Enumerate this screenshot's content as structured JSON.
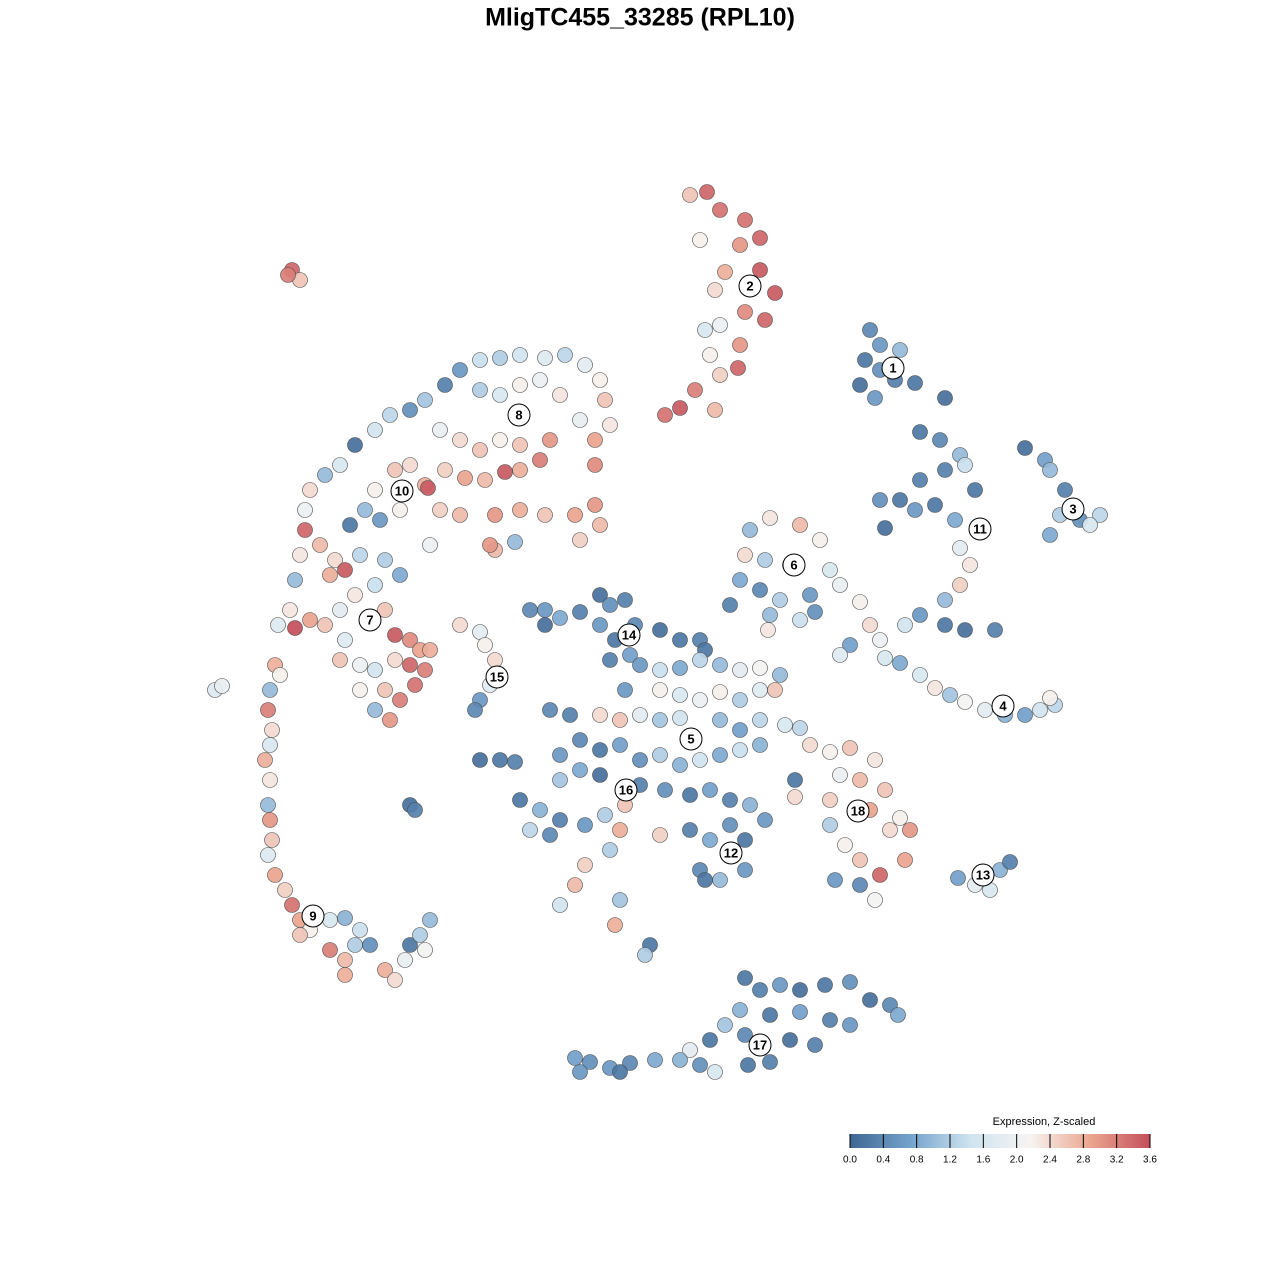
{
  "chart_data": {
    "type": "scatter",
    "title": "MligTC455_33285 (RPL10)",
    "xlim": [
      0,
      920
    ],
    "ylim": [
      0,
      920
    ],
    "x": [
      490,
      507,
      520,
      545,
      560,
      540,
      525,
      560,
      575,
      515,
      545,
      565,
      520,
      540,
      510,
      538,
      520,
      495,
      515,
      465,
      480,
      505,
      500,
      670,
      680,
      700,
      665,
      680,
      695,
      660,
      675,
      715,
      745,
      720,
      740,
      760,
      745,
      765,
      720,
      700,
      680,
      715,
      735,
      755,
      775,
      685,
      760,
      770,
      760,
      745,
      720,
      745,
      765,
      795,
      705,
      825,
      845,
      850,
      865,
      860,
      880,
      900,
      850,
      890,
      570,
      550,
      600,
      620,
      545,
      565,
      590,
      630,
      540,
      560,
      580,
      610,
      640,
      530,
      570,
      600,
      568,
      615,
      660,
      670,
      680,
      685,
      700,
      650,
      640,
      720,
      735,
      750,
      765,
      785,
      805,
      825,
      840,
      855,
      850,
      610,
      630,
      650,
      675,
      640,
      660,
      685,
      630,
      670,
      700,
      630,
      690,
      710,
      645,
      660,
      705,
      635,
      660,
      680,
      675,
      595,
      595,
      758,
      775,
      790,
      800,
      810,
      545,
      560,
      580,
      600,
      625,
      650,
      670,
      690,
      698,
      540,
      570,
      600,
      630,
      650,
      525,
      545,
      590,
      615,
      510,
      490,
      480,
      500,
      515,
      548,
      570,
      455,
      430,
      410,
      390,
      375,
      380,
      420,
      75,
      70,
      80,
      68,
      72,
      70,
      65,
      70,
      68,
      70,
      72,
      68,
      75,
      85,
      92,
      100,
      110,
      100,
      130,
      145,
      130,
      145,
      160,
      170,
      185,
      195,
      205,
      210,
      220,
      230,
      225,
      145,
      155,
      15,
      22,
      260,
      280,
      300,
      320,
      345,
      365,
      385,
      400,
      405,
      410,
      395,
      380,
      360,
      340,
      320,
      300,
      280,
      245,
      225,
      210,
      190,
      175,
      155,
      140,
      125,
      110,
      105,
      105,
      100,
      95,
      90,
      95,
      78,
      240,
      260,
      280,
      300,
      320,
      350,
      340,
      320,
      305,
      285,
      265,
      245,
      225,
      228,
      210,
      195,
      175,
      165,
      150,
      180,
      200,
      240,
      260,
      295,
      320,
      345,
      375,
      395,
      400,
      380,
      395,
      230,
      295,
      315,
      120,
      135,
      145,
      130,
      160,
      185,
      200,
      175,
      155,
      140,
      125,
      110,
      145,
      160,
      185,
      195,
      210,
      220,
      225,
      210,
      195,
      175,
      185,
      200,
      190,
      175,
      160,
      140,
      230,
      215,
      92,
      100,
      88,
      290,
      260,
      280,
      285,
      295,
      290,
      280,
      275,
      330,
      345,
      360,
      380,
      400,
      410,
      425,
      400,
      415,
      435,
      460,
      480,
      500,
      505,
      410,
      430,
      345,
      440,
      460,
      480,
      500,
      520,
      540,
      560,
      580,
      460,
      480,
      500,
      520,
      540,
      560,
      575,
      425,
      400,
      420,
      440,
      460,
      480,
      520,
      540,
      560,
      585,
      600,
      350,
      370,
      380,
      360,
      400,
      420,
      440,
      460,
      480,
      500,
      520,
      540,
      560,
      400,
      380,
      360,
      440,
      465,
      490,
      510,
      530,
      550,
      565,
      320,
      340,
      360,
      385,
      405,
      425,
      330,
      350,
      460,
      490,
      510,
      530,
      545,
      500,
      520,
      545,
      505,
      280,
      300,
      315,
      420,
      410,
      385,
      375,
      360,
      420,
      415,
      450,
      445,
      210,
      215
    ],
    "y": [
      900,
      903,
      885,
      875,
      857,
      850,
      823,
      825,
      802,
      805,
      783,
      775,
      770,
      750,
      740,
      727,
      720,
      705,
      685,
      680,
      687,
      765,
      855,
      765,
      750,
      745,
      735,
      725,
      715,
      710,
      697,
      712,
      697,
      663,
      655,
      640,
      625,
      630,
      615,
      595,
      595,
      585,
      590,
      575,
      605,
      567,
      547,
      530,
      510,
      495,
      480,
      470,
      465,
      465,
      470,
      647,
      635,
      625,
      605,
      580,
      575,
      580,
      560,
      570,
      577,
      565,
      570,
      555,
      540,
      535,
      530,
      525,
      515,
      505,
      495,
      500,
      510,
      490,
      480,
      475,
      465,
      483,
      493,
      470,
      455,
      437,
      432,
      450,
      440,
      420,
      407,
      400,
      393,
      385,
      380,
      380,
      385,
      390,
      397,
      350,
      343,
      347,
      335,
      320,
      315,
      305,
      295,
      285,
      277,
      270,
      265,
      265,
      250,
      235,
      235,
      215,
      210,
      220,
      195,
      298,
      315,
      217,
      210,
      205,
      225,
      233,
      117,
      105,
      110,
      105,
      110,
      113,
      95,
      90,
      80,
      85,
      80,
      83,
      75,
      70,
      70,
      60,
      55,
      50,
      55,
      45,
      35,
      30,
      23,
      30,
      33,
      35,
      32,
      27,
      33,
      37,
      23,
      23,
      430,
      405,
      420,
      385,
      365,
      350,
      335,
      315,
      290,
      275,
      255,
      240,
      220,
      205,
      190,
      175,
      165,
      160,
      145,
      135,
      175,
      177,
      165,
      150,
      125,
      115,
      135,
      150,
      160,
      175,
      145,
      120,
      150,
      405,
      409,
      725,
      735,
      737,
      740,
      737,
      740,
      730,
      715,
      695,
      670,
      655,
      675,
      700,
      715,
      710,
      700,
      705,
      710,
      695,
      685,
      680,
      665,
      650,
      630,
      620,
      605,
      585,
      565,
      540,
      515,
      485,
      467,
      470,
      665,
      655,
      645,
      655,
      650,
      655,
      635,
      625,
      623,
      615,
      617,
      625,
      610,
      607,
      630,
      625,
      605,
      585,
      570,
      575,
      585,
      585,
      580,
      580,
      585,
      580,
      580,
      590,
      570,
      555,
      630,
      550,
      545,
      553,
      550,
      535,
      525,
      520,
      540,
      535,
      520,
      510,
      500,
      485,
      470,
      475,
      455,
      430,
      485,
      460,
      455,
      445,
      425,
      430,
      435,
      425,
      405,
      395,
      375,
      385,
      405,
      435,
      445,
      410,
      825,
      815,
      820,
      550,
      470,
      463,
      450,
      435,
      410,
      395,
      385,
      485,
      485,
      477,
      483,
      500,
      490,
      495,
      470,
      455,
      470,
      465,
      455,
      455,
      445,
      435,
      440,
      470,
      430,
      425,
      427,
      435,
      430,
      425,
      427,
      420,
      405,
      400,
      395,
      403,
      395,
      405,
      405,
      405,
      380,
      375,
      380,
      375,
      377,
      375,
      365,
      375,
      370,
      367,
      385,
      380,
      355,
      340,
      345,
      350,
      335,
      340,
      330,
      335,
      340,
      345,
      350,
      320,
      325,
      315,
      310,
      305,
      300,
      305,
      295,
      290,
      275,
      295,
      285,
      275,
      270,
      280,
      290,
      265,
      260,
      260,
      265,
      255,
      270,
      255,
      225,
      215,
      225,
      215,
      335,
      335,
      333,
      265,
      245,
      230,
      210,
      190,
      195,
      170,
      150,
      140,
      290,
      285
    ],
    "values": [
      2.6,
      3.4,
      3.3,
      3.3,
      3.4,
      3.0,
      2.8,
      3.5,
      3.5,
      2.4,
      3.1,
      3.4,
      2.0,
      3.0,
      2.2,
      3.4,
      2.5,
      3.2,
      2.7,
      3.3,
      3.5,
      1.6,
      2.2,
      0.4,
      0.6,
      1.0,
      0.2,
      0.5,
      0.3,
      0.1,
      0.6,
      0.2,
      0.1,
      0.2,
      0.4,
      1.0,
      0.3,
      1.4,
      0.3,
      0.2,
      0.5,
      0.6,
      0.2,
      0.8,
      0.2,
      0.1,
      1.8,
      2.3,
      2.5,
      1.0,
      0.6,
      0.2,
      0.1,
      0.3,
      1.5,
      0.1,
      0.7,
      1.0,
      0.3,
      1.2,
      0.5,
      1.3,
      0.8,
      1.6,
      2.3,
      1.0,
      2.7,
      2.2,
      2.4,
      1.2,
      2.0,
      1.6,
      0.8,
      0.4,
      1.2,
      0.6,
      1.9,
      0.3,
      1.0,
      1.4,
      2.3,
      0.5,
      2.2,
      2.4,
      2.0,
      1.6,
      0.8,
      0.7,
      1.7,
      1.6,
      2.3,
      1.1,
      2.1,
      1.8,
      0.9,
      0.7,
      1.5,
      1.3,
      2.2,
      2.4,
      2.2,
      2.6,
      2.3,
      2.0,
      2.7,
      2.6,
      2.5,
      2.9,
      2.2,
      1.2,
      2.4,
      3.0,
      2.2,
      2.6,
      2.9,
      0.6,
      0.4,
      3.4,
      2.1,
      2.4,
      0.2,
      0.7,
      1.8,
      1.6,
      0.9,
      0.3,
      0.2,
      0.3,
      0.6,
      0.1,
      0.2,
      0.5,
      0.1,
      0.4,
      0.8,
      0.9,
      0.2,
      0.7,
      0.3,
      0.6,
      1.1,
      0.4,
      0.1,
      0.3,
      0.2,
      1.8,
      0.9,
      0.5,
      1.6,
      0.2,
      0.3,
      0.8,
      0.4,
      0.6,
      0.5,
      0.7,
      0.6,
      0.2,
      2.8,
      1.0,
      2.2,
      3.2,
      2.4,
      1.6,
      2.8,
      2.3,
      1.0,
      3.0,
      2.6,
      1.7,
      2.9,
      2.5,
      3.3,
      2.9,
      2.2,
      2.6,
      3.2,
      2.7,
      1.6,
      0.9,
      1.4,
      0.5,
      2.8,
      2.4,
      1.9,
      0.2,
      1.2,
      1.0,
      2.1,
      2.8,
      1.2,
      1.7,
      1.9,
      0.6,
      1.4,
      1.2,
      1.5,
      1.7,
      1.3,
      1.8,
      2.2,
      2.6,
      2.3,
      2.9,
      1.9,
      2.3,
      2.0,
      2.2,
      1.6,
      1.2,
      0.3,
      1.1,
      0.5,
      1.3,
      1.5,
      0.1,
      1.6,
      1.0,
      2.4,
      2.0,
      3.4,
      2.3,
      1.0,
      2.3,
      3.6,
      1.7,
      1.9,
      2.4,
      2.6,
      2.2,
      2.6,
      3.0,
      3.2,
      2.8,
      3.5,
      2.7,
      2.9,
      2.5,
      2.8,
      3.5,
      2.4,
      2.6,
      2.2,
      1.0,
      0.2,
      0.6,
      2.2,
      2.5,
      2.7,
      3.0,
      2.8,
      2.6,
      2.9,
      3.0,
      2.7,
      2.5,
      3.1,
      2.0,
      2.7,
      1.0,
      2.7,
      2.4,
      3.5,
      2.8,
      1.3,
      1.2,
      0.8,
      1.4,
      2.3,
      1.8,
      2.6,
      2.9,
      1.7,
      2.0,
      2.6,
      3.5,
      3.1,
      2.9,
      3.2,
      3.4,
      2.4,
      1.5,
      2.6,
      3.2,
      3.0,
      1.0,
      2.2,
      2.6,
      2.8,
      3.3,
      3.4,
      2.6,
      3.2,
      3.0,
      2.4,
      1.8,
      2.2,
      2.4,
      1.8,
      0.6,
      0.4,
      0.4,
      0.6,
      0.8,
      0.3,
      0.1,
      0.5,
      0.3,
      0.6,
      0.2,
      0.4,
      0.1,
      0.2,
      0.3,
      0.2,
      0.3,
      0.7,
      0.1,
      0.6,
      1.4,
      0.8,
      1.3,
      1.0,
      1.8,
      2.1,
      1.0,
      2.2,
      1.6,
      2.0,
      2.2,
      1.2,
      1.7,
      2.6,
      0.6,
      2.4,
      2.6,
      1.8,
      1.1,
      1.5,
      1.0,
      0.7,
      1.3,
      1.6,
      1.3,
      0.4,
      0.3,
      0.4,
      0.6,
      0.2,
      0.7,
      0.5,
      1.2,
      0.9,
      1.5,
      0.8,
      1.4,
      0.9,
      0.1,
      0.8,
      1.1,
      0.3,
      0.5,
      0.2,
      0.7,
      0.3,
      0.9,
      0.6,
      0.2,
      0.9,
      0.3,
      0.6,
      1.2,
      2.6,
      1.3,
      0.4,
      2.5,
      0.3,
      0.8,
      0.5,
      0.2,
      0.4,
      1.0,
      0.6,
      0.2,
      0.1,
      0.2,
      0.3,
      2.8,
      1.2,
      2.5,
      2.7,
      1.5,
      1.1,
      2.8,
      0.2,
      1.2,
      0.1,
      0.3
    ],
    "annotations": [
      {
        "text": "1",
        "x": 693,
        "y": 727
      },
      {
        "text": "2",
        "x": 550,
        "y": 809
      },
      {
        "text": "3",
        "x": 873,
        "y": 586
      },
      {
        "text": "4",
        "x": 803,
        "y": 389
      },
      {
        "text": "5",
        "x": 491,
        "y": 356
      },
      {
        "text": "6",
        "x": 594,
        "y": 530
      },
      {
        "text": "7",
        "x": 170,
        "y": 475
      },
      {
        "text": "8",
        "x": 319,
        "y": 680
      },
      {
        "text": "9",
        "x": 113,
        "y": 179
      },
      {
        "text": "10",
        "x": 202,
        "y": 604
      },
      {
        "text": "11",
        "x": 780,
        "y": 566
      },
      {
        "text": "12",
        "x": 531,
        "y": 242
      },
      {
        "text": "13",
        "x": 783,
        "y": 220
      },
      {
        "text": "14",
        "x": 429,
        "y": 460
      },
      {
        "text": "15",
        "x": 297,
        "y": 418
      },
      {
        "text": "16",
        "x": 426,
        "y": 305
      },
      {
        "text": "17",
        "x": 560,
        "y": 50
      },
      {
        "text": "18",
        "x": 658,
        "y": 284
      }
    ],
    "colorbar": {
      "title": "Expression, Z-scaled",
      "lim": [
        0,
        3.6
      ],
      "colors": [
        "#3f6793",
        "#73a2cc",
        "#cfe3f0",
        "#f6f4f2",
        "#eba68f",
        "#c44e5b"
      ],
      "ticks": [
        {
          "value": 0,
          "label": "0.0"
        },
        0.4,
        0.8,
        1.2,
        1.6,
        {
          "value": 2,
          "label": "2.0"
        },
        2.4,
        2.8,
        3.2,
        3.6
      ]
    }
  }
}
